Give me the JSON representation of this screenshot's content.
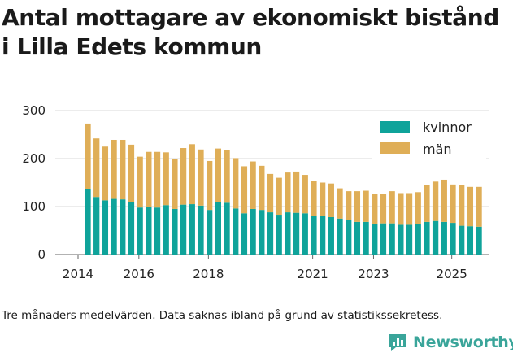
{
  "chart_data": {
    "type": "bar",
    "stacked": true,
    "title": [
      "Antal mottagare av ekonomiskt bistånd",
      "i Lilla Edets kommun"
    ],
    "xlabel": "",
    "ylabel": "",
    "ylim": [
      0,
      300
    ],
    "yticks": [
      0,
      100,
      200,
      300
    ],
    "xtick_labels": [
      "2014",
      "2016",
      "2018",
      "2021",
      "2023",
      "2025"
    ],
    "legend_position": "top-right",
    "grid": true,
    "series": [
      {
        "name": "kvinnor",
        "color": "#0fa39a",
        "values": [
          137,
          120,
          113,
          116,
          115,
          110,
          98,
          100,
          98,
          103,
          95,
          104,
          105,
          102,
          93,
          110,
          108,
          96,
          86,
          95,
          93,
          88,
          83,
          88,
          87,
          86,
          80,
          80,
          78,
          75,
          72,
          68,
          68,
          64,
          65,
          65,
          62,
          62,
          63,
          68,
          70,
          68,
          66,
          60,
          59,
          58
        ]
      },
      {
        "name": "män",
        "color": "#dfae57",
        "values": [
          136,
          122,
          112,
          123,
          124,
          119,
          106,
          114,
          116,
          110,
          104,
          118,
          125,
          117,
          102,
          111,
          110,
          105,
          98,
          99,
          92,
          80,
          77,
          83,
          86,
          80,
          73,
          70,
          70,
          63,
          60,
          64,
          65,
          62,
          62,
          67,
          66,
          66,
          67,
          77,
          82,
          88,
          80,
          85,
          82,
          83
        ]
      }
    ]
  },
  "caption": "Tre månaders medelvärden. Data saknas ibland på grund av statistikssekretess.",
  "brand": {
    "name": "Newsworthy",
    "color": "#3aa59a"
  }
}
